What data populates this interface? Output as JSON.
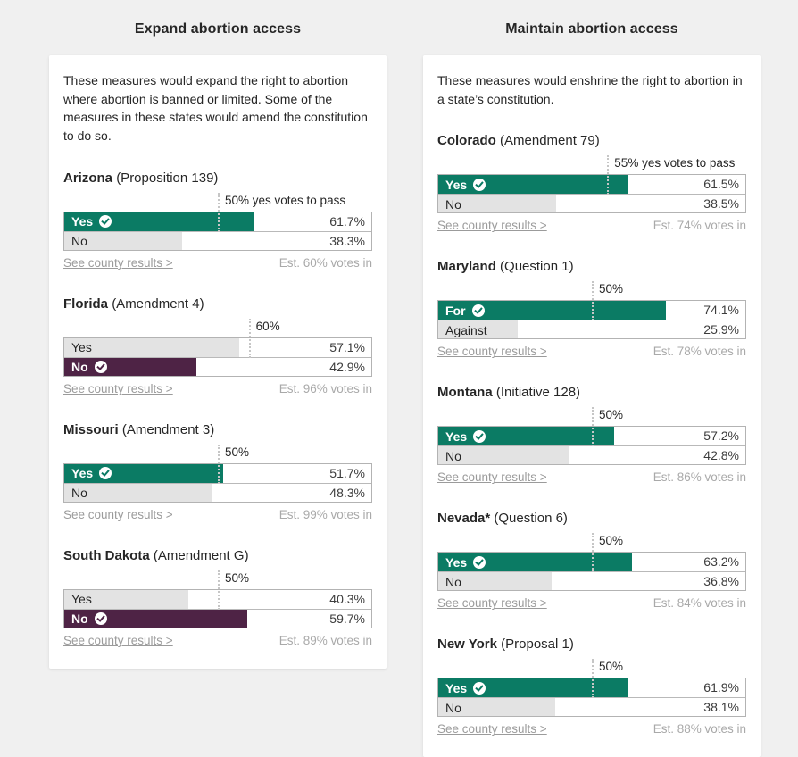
{
  "colors": {
    "green": "#0b7b64",
    "purple": "#4e2345",
    "gray": "#e3e3e3",
    "page_bg": "#f0f0f0",
    "card_bg": "#ffffff",
    "muted_text": "#9b9b9b"
  },
  "columns": [
    {
      "title": "Expand abortion access",
      "description": "These measures would expand the right to abortion where abortion is banned or limited. Some of the measures in these states would amend the constitution to do so.",
      "measures": [
        {
          "state": "Arizona",
          "name": "(Proposition 139)",
          "threshold_pct": 50,
          "threshold_label": "50% yes votes to pass",
          "rows": [
            {
              "label": "Yes",
              "pct": 61.7,
              "value": "61.7%",
              "winner": true,
              "color": "green"
            },
            {
              "label": "No",
              "pct": 38.3,
              "value": "38.3%",
              "winner": false,
              "color": "gray"
            }
          ],
          "county_link": "See county results >",
          "votes_in": "Est. 60% votes in"
        },
        {
          "state": "Florida",
          "name": "(Amendment 4)",
          "threshold_pct": 60,
          "threshold_label": "60%",
          "rows": [
            {
              "label": "Yes",
              "pct": 57.1,
              "value": "57.1%",
              "winner": false,
              "color": "gray"
            },
            {
              "label": "No",
              "pct": 42.9,
              "value": "42.9%",
              "winner": true,
              "color": "purple"
            }
          ],
          "county_link": "See county results >",
          "votes_in": "Est. 96% votes in"
        },
        {
          "state": "Missouri",
          "name": "(Amendment 3)",
          "threshold_pct": 50,
          "threshold_label": "50%",
          "rows": [
            {
              "label": "Yes",
              "pct": 51.7,
              "value": "51.7%",
              "winner": true,
              "color": "green"
            },
            {
              "label": "No",
              "pct": 48.3,
              "value": "48.3%",
              "winner": false,
              "color": "gray"
            }
          ],
          "county_link": "See county results >",
          "votes_in": "Est. 99% votes in"
        },
        {
          "state": "South Dakota",
          "name": "(Amendment G)",
          "threshold_pct": 50,
          "threshold_label": "50%",
          "rows": [
            {
              "label": "Yes",
              "pct": 40.3,
              "value": "40.3%",
              "winner": false,
              "color": "gray"
            },
            {
              "label": "No",
              "pct": 59.7,
              "value": "59.7%",
              "winner": true,
              "color": "purple"
            }
          ],
          "county_link": "See county results >",
          "votes_in": "Est. 89% votes in"
        }
      ]
    },
    {
      "title": "Maintain abortion access",
      "description": "These measures would enshrine the right to abortion in a state’s constitution.",
      "measures": [
        {
          "state": "Colorado",
          "name": "(Amendment 79)",
          "threshold_pct": 55,
          "threshold_label": "55% yes votes to pass",
          "rows": [
            {
              "label": "Yes",
              "pct": 61.5,
              "value": "61.5%",
              "winner": true,
              "color": "green"
            },
            {
              "label": "No",
              "pct": 38.5,
              "value": "38.5%",
              "winner": false,
              "color": "gray"
            }
          ],
          "county_link": "See county results >",
          "votes_in": "Est. 74% votes in"
        },
        {
          "state": "Maryland",
          "name": "(Question 1)",
          "threshold_pct": 50,
          "threshold_label": "50%",
          "rows": [
            {
              "label": "For",
              "pct": 74.1,
              "value": "74.1%",
              "winner": true,
              "color": "green"
            },
            {
              "label": "Against",
              "pct": 25.9,
              "value": "25.9%",
              "winner": false,
              "color": "gray"
            }
          ],
          "county_link": "See county results >",
          "votes_in": "Est. 78% votes in"
        },
        {
          "state": "Montana",
          "name": "(Initiative 128)",
          "threshold_pct": 50,
          "threshold_label": "50%",
          "rows": [
            {
              "label": "Yes",
              "pct": 57.2,
              "value": "57.2%",
              "winner": true,
              "color": "green"
            },
            {
              "label": "No",
              "pct": 42.8,
              "value": "42.8%",
              "winner": false,
              "color": "gray"
            }
          ],
          "county_link": "See county results >",
          "votes_in": "Est. 86% votes in"
        },
        {
          "state": "Nevada*",
          "name": "(Question 6)",
          "threshold_pct": 50,
          "threshold_label": "50%",
          "rows": [
            {
              "label": "Yes",
              "pct": 63.2,
              "value": "63.2%",
              "winner": true,
              "color": "green"
            },
            {
              "label": "No",
              "pct": 36.8,
              "value": "36.8%",
              "winner": false,
              "color": "gray"
            }
          ],
          "county_link": "See county results >",
          "votes_in": "Est. 84% votes in"
        },
        {
          "state": "New York",
          "name": "(Proposal 1)",
          "threshold_pct": 50,
          "threshold_label": "50%",
          "rows": [
            {
              "label": "Yes",
              "pct": 61.9,
              "value": "61.9%",
              "winner": true,
              "color": "green"
            },
            {
              "label": "No",
              "pct": 38.1,
              "value": "38.1%",
              "winner": false,
              "color": "gray"
            }
          ],
          "county_link": "See county results >",
          "votes_in": "Est. 88% votes in"
        }
      ]
    }
  ],
  "chart_data": [
    {
      "type": "bar",
      "group": "Expand abortion access",
      "title": "Arizona (Proposition 139)",
      "categories": [
        "Yes",
        "No"
      ],
      "values": [
        61.7,
        38.3
      ],
      "winner": "Yes",
      "threshold_pct": 50,
      "threshold_label": "50% yes votes to pass",
      "annotation": "Est. 60% votes in",
      "xlim": [
        0,
        100
      ]
    },
    {
      "type": "bar",
      "group": "Expand abortion access",
      "title": "Florida (Amendment 4)",
      "categories": [
        "Yes",
        "No"
      ],
      "values": [
        57.1,
        42.9
      ],
      "winner": "No",
      "threshold_pct": 60,
      "threshold_label": "60%",
      "annotation": "Est. 96% votes in",
      "xlim": [
        0,
        100
      ]
    },
    {
      "type": "bar",
      "group": "Expand abortion access",
      "title": "Missouri (Amendment 3)",
      "categories": [
        "Yes",
        "No"
      ],
      "values": [
        51.7,
        48.3
      ],
      "winner": "Yes",
      "threshold_pct": 50,
      "threshold_label": "50%",
      "annotation": "Est. 99% votes in",
      "xlim": [
        0,
        100
      ]
    },
    {
      "type": "bar",
      "group": "Expand abortion access",
      "title": "South Dakota (Amendment G)",
      "categories": [
        "Yes",
        "No"
      ],
      "values": [
        40.3,
        59.7
      ],
      "winner": "No",
      "threshold_pct": 50,
      "threshold_label": "50%",
      "annotation": "Est. 89% votes in",
      "xlim": [
        0,
        100
      ]
    },
    {
      "type": "bar",
      "group": "Maintain abortion access",
      "title": "Colorado (Amendment 79)",
      "categories": [
        "Yes",
        "No"
      ],
      "values": [
        61.5,
        38.5
      ],
      "winner": "Yes",
      "threshold_pct": 55,
      "threshold_label": "55% yes votes to pass",
      "annotation": "Est. 74% votes in",
      "xlim": [
        0,
        100
      ]
    },
    {
      "type": "bar",
      "group": "Maintain abortion access",
      "title": "Maryland (Question 1)",
      "categories": [
        "For",
        "Against"
      ],
      "values": [
        74.1,
        25.9
      ],
      "winner": "For",
      "threshold_pct": 50,
      "threshold_label": "50%",
      "annotation": "Est. 78% votes in",
      "xlim": [
        0,
        100
      ]
    },
    {
      "type": "bar",
      "group": "Maintain abortion access",
      "title": "Montana (Initiative 128)",
      "categories": [
        "Yes",
        "No"
      ],
      "values": [
        57.2,
        42.8
      ],
      "winner": "Yes",
      "threshold_pct": 50,
      "threshold_label": "50%",
      "annotation": "Est. 86% votes in",
      "xlim": [
        0,
        100
      ]
    },
    {
      "type": "bar",
      "group": "Maintain abortion access",
      "title": "Nevada* (Question 6)",
      "categories": [
        "Yes",
        "No"
      ],
      "values": [
        63.2,
        36.8
      ],
      "winner": "Yes",
      "threshold_pct": 50,
      "threshold_label": "50%",
      "annotation": "Est. 84% votes in",
      "xlim": [
        0,
        100
      ]
    },
    {
      "type": "bar",
      "group": "Maintain abortion access",
      "title": "New York (Proposal 1)",
      "categories": [
        "Yes",
        "No"
      ],
      "values": [
        61.9,
        38.1
      ],
      "winner": "Yes",
      "threshold_pct": 50,
      "threshold_label": "50%",
      "annotation": "Est. 88% votes in",
      "xlim": [
        0,
        100
      ]
    }
  ]
}
